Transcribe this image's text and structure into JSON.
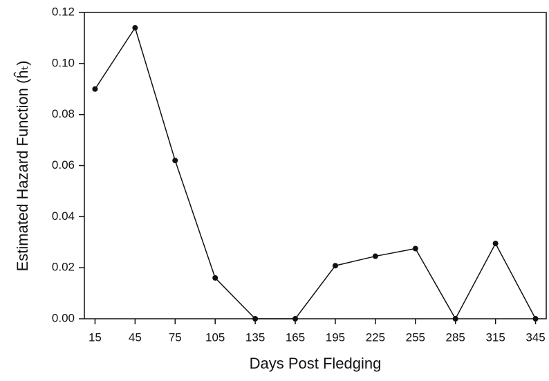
{
  "chart_data": {
    "type": "line",
    "x_label": "Days Post Fledging",
    "y_label": "Estimated Hazard Function (ĥₜ)",
    "x": [
      15,
      45,
      75,
      105,
      135,
      165,
      195,
      225,
      255,
      285,
      315,
      345
    ],
    "series": [
      {
        "color": "#111111",
        "values": [
          0.09,
          0.114,
          0.062,
          0.016,
          0,
          0,
          0.0208,
          0.0245,
          0.0275,
          0,
          0.0295,
          0
        ]
      }
    ],
    "xlim": [
      7,
      353
    ],
    "xticks": [
      15,
      45,
      75,
      105,
      135,
      165,
      195,
      225,
      255,
      285,
      315,
      345
    ],
    "ylim": [
      0,
      0.12
    ],
    "yticks": [
      {
        "value": 0,
        "label": "0.00"
      },
      0.02,
      0.04,
      0.06,
      0.08,
      {
        "value": 0.1,
        "label": "0.10"
      },
      0.12
    ]
  }
}
